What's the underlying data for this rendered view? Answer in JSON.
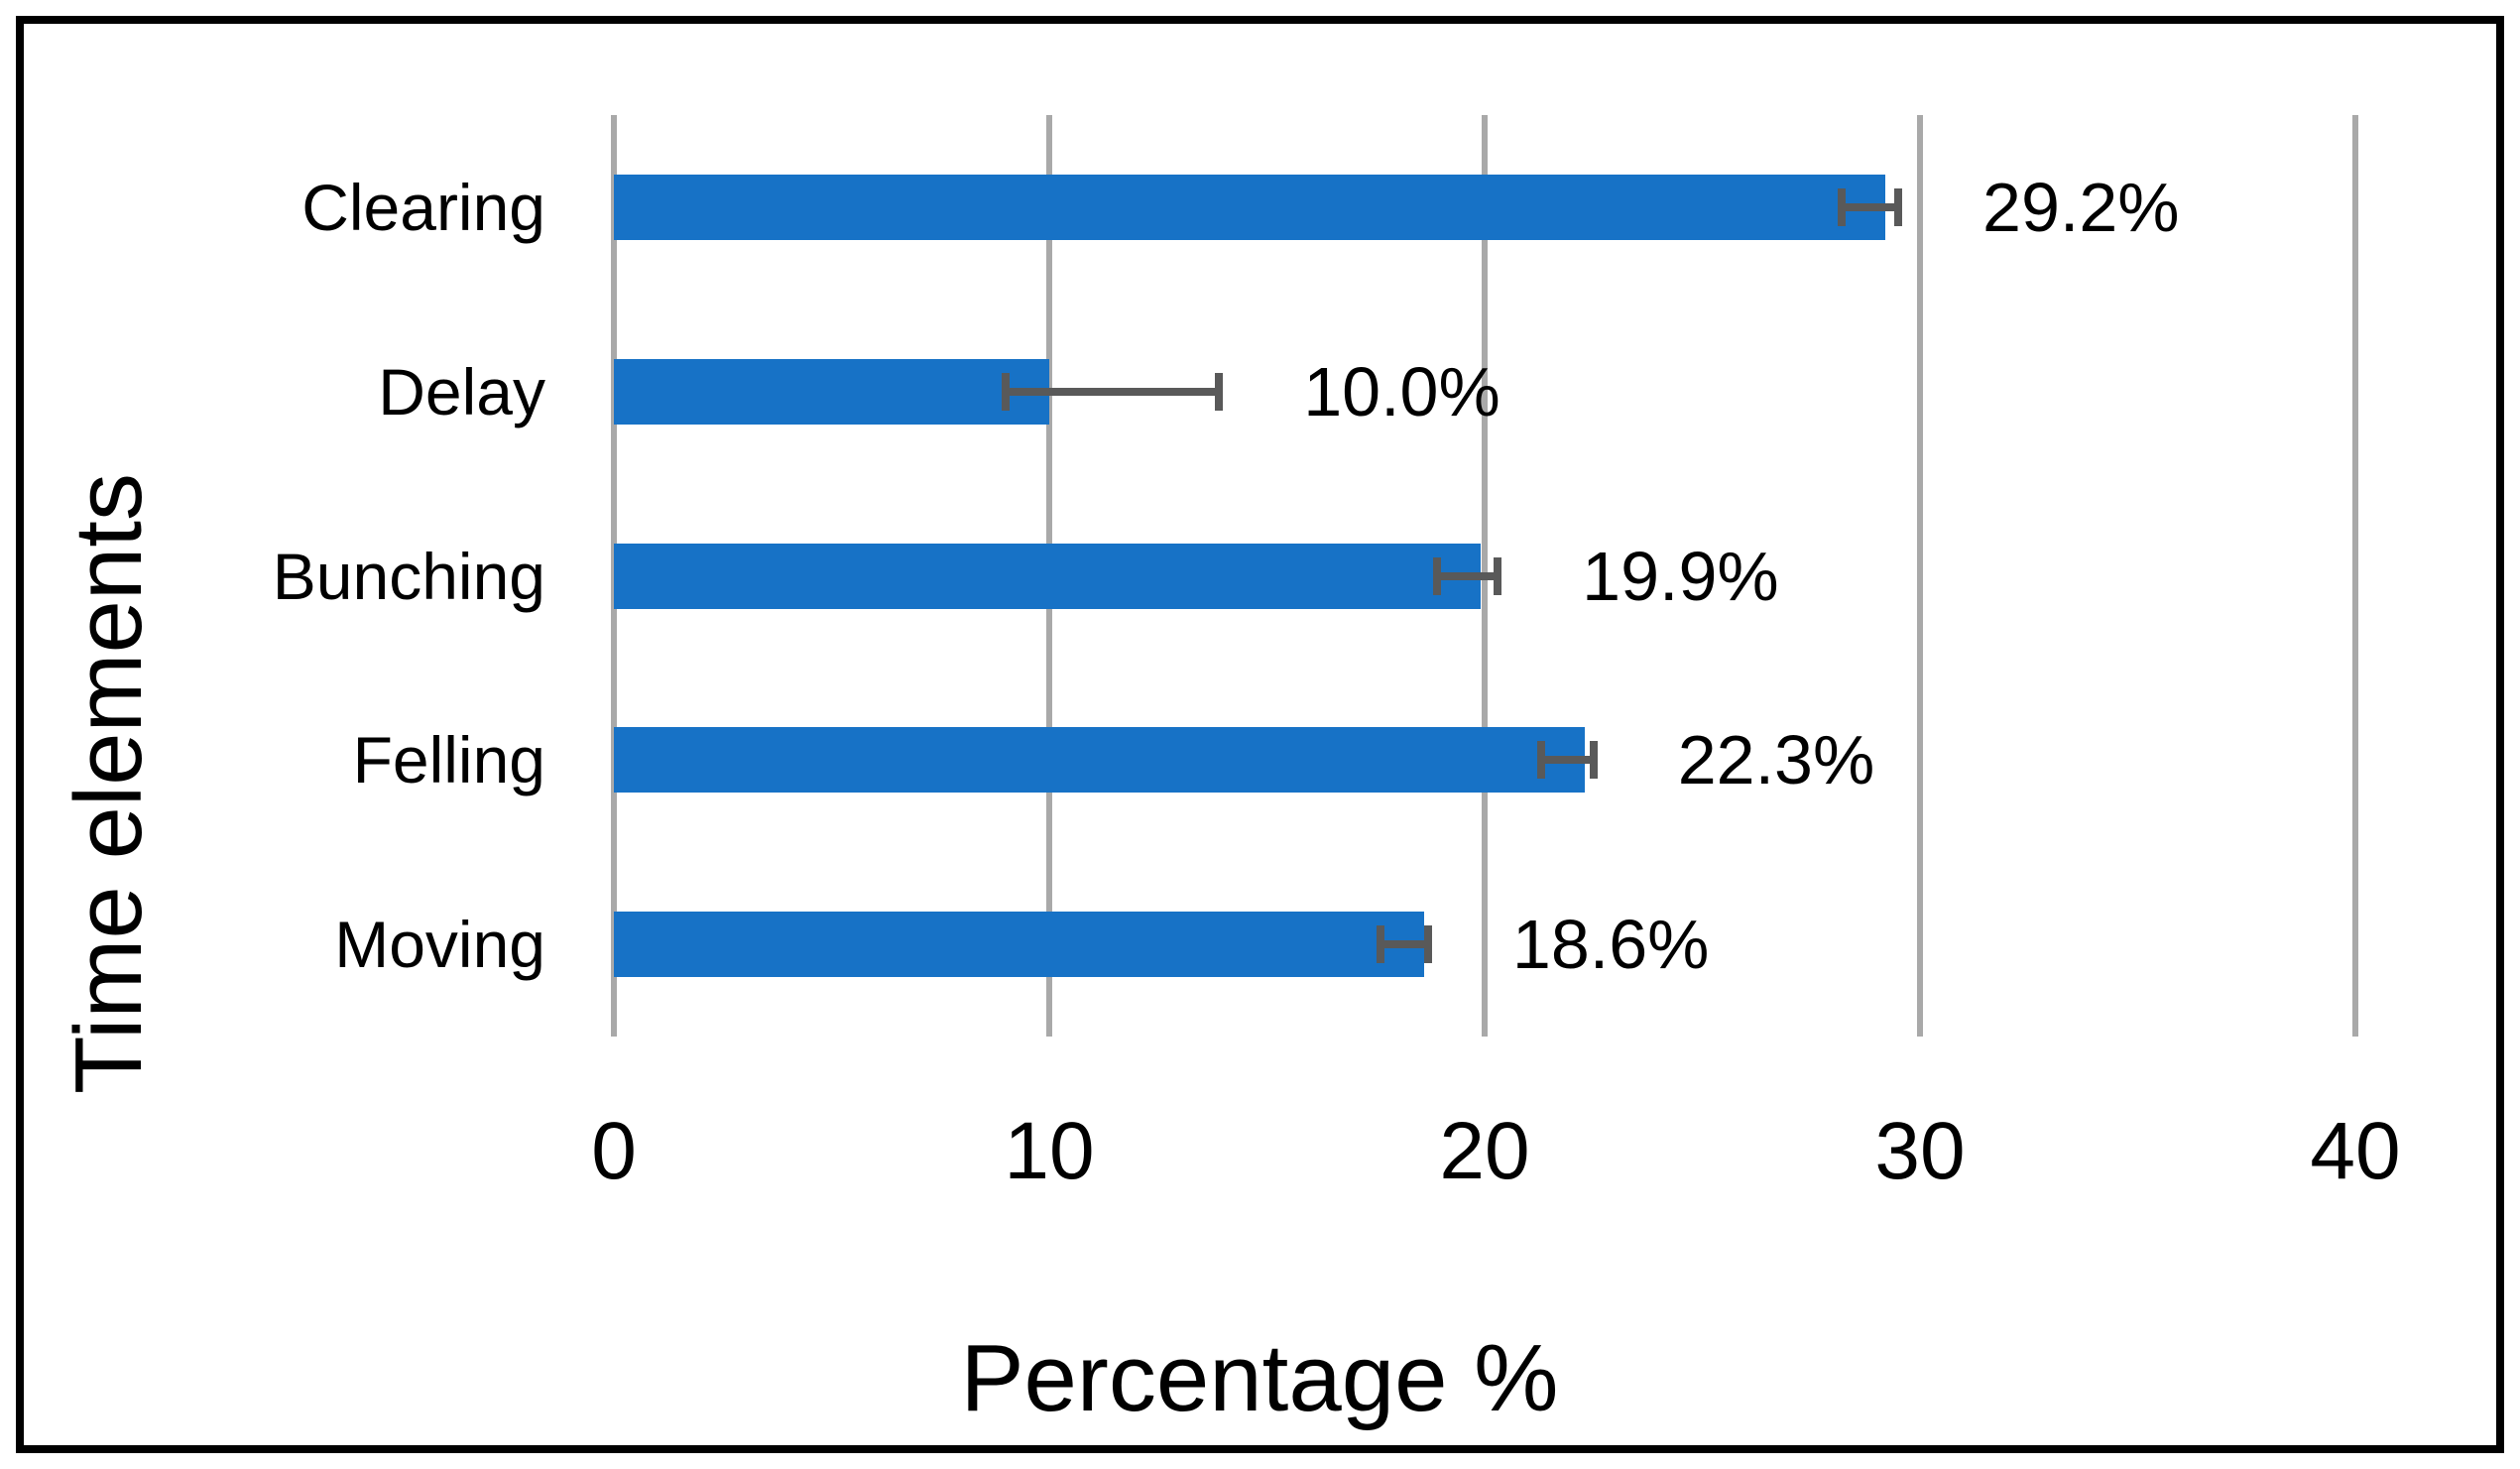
{
  "chart_data": {
    "type": "bar",
    "orientation": "horizontal",
    "title": "",
    "categories": [
      "Clearing",
      "Delay",
      "Bunching",
      "Felling",
      "Moving"
    ],
    "values": [
      29.2,
      10.0,
      19.9,
      22.3,
      18.6
    ],
    "bar_labels": [
      "29.2%",
      "10.0%",
      "19.9%",
      "22.3%",
      "18.6%"
    ],
    "error_minus": [
      1.0,
      1.0,
      1.0,
      1.0,
      1.0
    ],
    "error_plus": [
      0.3,
      3.9,
      0.4,
      0.2,
      0.1
    ],
    "xlabel": "Percentage %",
    "ylabel": "Time elements",
    "xlim": [
      0,
      40
    ],
    "xticks": [
      "0",
      "10",
      "20",
      "30",
      "40"
    ],
    "grid": true,
    "legend": false,
    "colors": {
      "bar": "#1772C6",
      "gridline": "#A9A9A9",
      "error_bar": "#595959",
      "text": "#000000",
      "background": "#FFFFFF",
      "frame_border": "#000000"
    }
  }
}
